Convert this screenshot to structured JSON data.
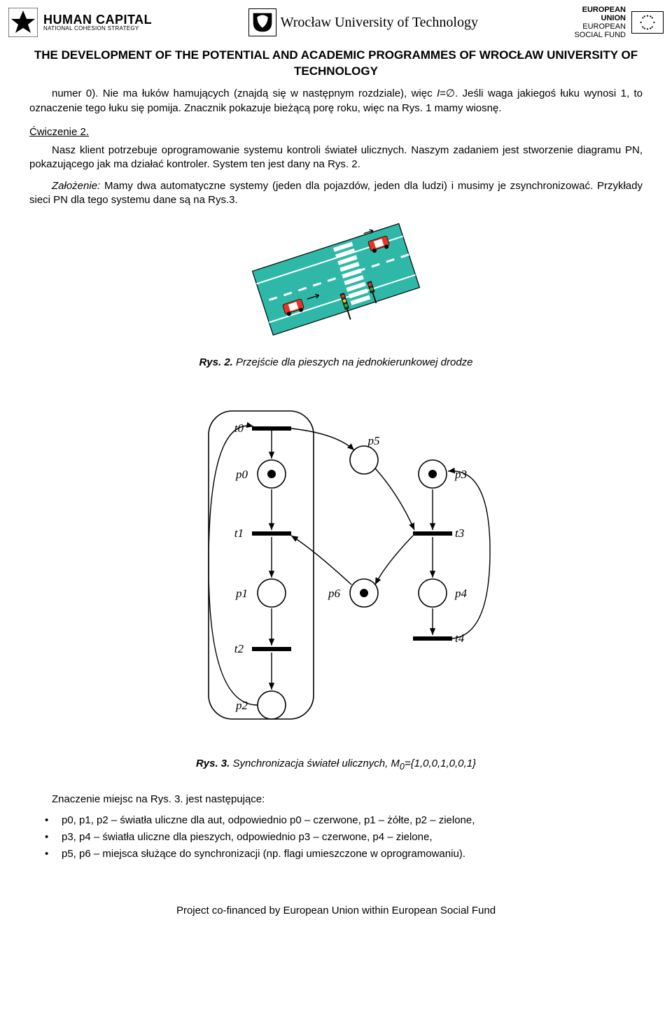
{
  "header": {
    "hc_big": "HUMAN CAPITAL",
    "hc_small": "NATIONAL COHESION STRATEGY",
    "wut": "Wrocław University of Technology",
    "eu_line1": "EUROPEAN",
    "eu_line2": "UNION",
    "eu_line3": "EUROPEAN",
    "eu_line4": "SOCIAL FUND"
  },
  "title": "THE DEVELOPMENT OF THE POTENTIAL AND ACADEMIC PROGRAMMES OF WROCŁAW UNIVERSITY OF TECHNOLOGY",
  "para1_a": "numer 0). Nie ma łuków hamujących (znajdą się w następnym rozdziale), więc ",
  "para1_b": "I",
  "para1_c": "=∅. Jeśli waga jakiegoś łuku wynosi 1, to oznaczenie tego łuku się pomija. Znacznik pokazuje bieżącą porę roku, więc na Rys. 1 mamy wiosnę.",
  "exercise": "Ćwiczenie 2.",
  "para2": "Nasz klient potrzebuje oprogramowanie systemu kontroli świateł ulicznych. Naszym zadaniem jest stworzenie diagramu PN, pokazującego jak ma działać kontroler. System ten jest dany na Rys. 2.",
  "para3_a": "Założenie:",
  "para3_b": " Mamy dwa automatyczne systemy (jeden dla pojazdów, jeden dla ludzi) i musimy je zsynchronizować. Przykłady sieci PN dla tego systemu dane są na Rys.3.",
  "fig2_caption_b": "Rys. 2.",
  "fig2_caption": " Przejście dla pieszych na jednokierunkowej drodze",
  "fig3_caption_b": "Rys. 3.",
  "fig3_caption_a": " Synchronizacja świateł ulicznych, M",
  "fig3_caption_sub": "0",
  "fig3_caption_c": "={1,0,0,1,0,0,1}",
  "para4": "Znaczenie miejsc na Rys. 3. jest następujące:",
  "bullet1": "p0, p1, p2 – światła uliczne dla aut, odpowiednio p0 – czerwone, p1 – żółte, p2 – zielone,",
  "bullet2": "p3, p4 – światła uliczne dla pieszych, odpowiednio p3 – czerwone, p4 – zielone,",
  "bullet3": "p5, p6 – miejsca służące do synchronizacji (np. flagi umieszczone w oprogramowaniu).",
  "footer": "Project co-financed by European Union within European Social Fund",
  "crossing": {
    "bg": "#2fb8a8",
    "road": "#ffffff",
    "car_body": "#e53525",
    "crosswalk": "#ffffff"
  },
  "petri": {
    "labels": {
      "t0": "t0",
      "p0": "p0",
      "t1": "t1",
      "p1": "p1",
      "t2": "t2",
      "p2": "p2",
      "p5": "p5",
      "p6": "p6",
      "p3": "p3",
      "t3": "t3",
      "p4": "p4",
      "t4": "t4"
    },
    "place_r": 20,
    "token_r": 6,
    "stroke": "#000000",
    "fontsize": 17,
    "tokens": [
      "p0",
      "p3",
      "p6"
    ]
  }
}
